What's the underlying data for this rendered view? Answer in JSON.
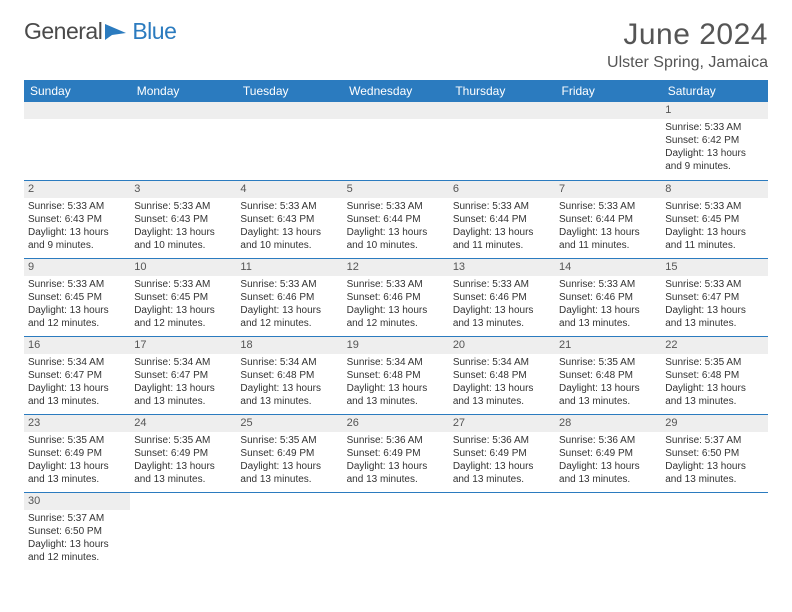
{
  "logo": {
    "text1": "General",
    "text2": "Blue"
  },
  "title": "June 2024",
  "location": "Ulster Spring, Jamaica",
  "colors": {
    "header_bg": "#2b7bbf",
    "header_text": "#ffffff",
    "daynum_bg": "#eeeeee",
    "border": "#2b7bbf",
    "text": "#333333",
    "title_color": "#555555"
  },
  "weekdays": [
    "Sunday",
    "Monday",
    "Tuesday",
    "Wednesday",
    "Thursday",
    "Friday",
    "Saturday"
  ],
  "days": {
    "1": {
      "sunrise": "5:33 AM",
      "sunset": "6:42 PM",
      "daylight": "13 hours and 9 minutes."
    },
    "2": {
      "sunrise": "5:33 AM",
      "sunset": "6:43 PM",
      "daylight": "13 hours and 9 minutes."
    },
    "3": {
      "sunrise": "5:33 AM",
      "sunset": "6:43 PM",
      "daylight": "13 hours and 10 minutes."
    },
    "4": {
      "sunrise": "5:33 AM",
      "sunset": "6:43 PM",
      "daylight": "13 hours and 10 minutes."
    },
    "5": {
      "sunrise": "5:33 AM",
      "sunset": "6:44 PM",
      "daylight": "13 hours and 10 minutes."
    },
    "6": {
      "sunrise": "5:33 AM",
      "sunset": "6:44 PM",
      "daylight": "13 hours and 11 minutes."
    },
    "7": {
      "sunrise": "5:33 AM",
      "sunset": "6:44 PM",
      "daylight": "13 hours and 11 minutes."
    },
    "8": {
      "sunrise": "5:33 AM",
      "sunset": "6:45 PM",
      "daylight": "13 hours and 11 minutes."
    },
    "9": {
      "sunrise": "5:33 AM",
      "sunset": "6:45 PM",
      "daylight": "13 hours and 12 minutes."
    },
    "10": {
      "sunrise": "5:33 AM",
      "sunset": "6:45 PM",
      "daylight": "13 hours and 12 minutes."
    },
    "11": {
      "sunrise": "5:33 AM",
      "sunset": "6:46 PM",
      "daylight": "13 hours and 12 minutes."
    },
    "12": {
      "sunrise": "5:33 AM",
      "sunset": "6:46 PM",
      "daylight": "13 hours and 12 minutes."
    },
    "13": {
      "sunrise": "5:33 AM",
      "sunset": "6:46 PM",
      "daylight": "13 hours and 13 minutes."
    },
    "14": {
      "sunrise": "5:33 AM",
      "sunset": "6:46 PM",
      "daylight": "13 hours and 13 minutes."
    },
    "15": {
      "sunrise": "5:33 AM",
      "sunset": "6:47 PM",
      "daylight": "13 hours and 13 minutes."
    },
    "16": {
      "sunrise": "5:34 AM",
      "sunset": "6:47 PM",
      "daylight": "13 hours and 13 minutes."
    },
    "17": {
      "sunrise": "5:34 AM",
      "sunset": "6:47 PM",
      "daylight": "13 hours and 13 minutes."
    },
    "18": {
      "sunrise": "5:34 AM",
      "sunset": "6:48 PM",
      "daylight": "13 hours and 13 minutes."
    },
    "19": {
      "sunrise": "5:34 AM",
      "sunset": "6:48 PM",
      "daylight": "13 hours and 13 minutes."
    },
    "20": {
      "sunrise": "5:34 AM",
      "sunset": "6:48 PM",
      "daylight": "13 hours and 13 minutes."
    },
    "21": {
      "sunrise": "5:35 AM",
      "sunset": "6:48 PM",
      "daylight": "13 hours and 13 minutes."
    },
    "22": {
      "sunrise": "5:35 AM",
      "sunset": "6:48 PM",
      "daylight": "13 hours and 13 minutes."
    },
    "23": {
      "sunrise": "5:35 AM",
      "sunset": "6:49 PM",
      "daylight": "13 hours and 13 minutes."
    },
    "24": {
      "sunrise": "5:35 AM",
      "sunset": "6:49 PM",
      "daylight": "13 hours and 13 minutes."
    },
    "25": {
      "sunrise": "5:35 AM",
      "sunset": "6:49 PM",
      "daylight": "13 hours and 13 minutes."
    },
    "26": {
      "sunrise": "5:36 AM",
      "sunset": "6:49 PM",
      "daylight": "13 hours and 13 minutes."
    },
    "27": {
      "sunrise": "5:36 AM",
      "sunset": "6:49 PM",
      "daylight": "13 hours and 13 minutes."
    },
    "28": {
      "sunrise": "5:36 AM",
      "sunset": "6:49 PM",
      "daylight": "13 hours and 13 minutes."
    },
    "29": {
      "sunrise": "5:37 AM",
      "sunset": "6:50 PM",
      "daylight": "13 hours and 13 minutes."
    },
    "30": {
      "sunrise": "5:37 AM",
      "sunset": "6:50 PM",
      "daylight": "13 hours and 12 minutes."
    }
  },
  "layout": {
    "first_day_of_week_index": 6,
    "days_in_month": 30,
    "rows": 6
  },
  "labels": {
    "sunrise_prefix": "Sunrise: ",
    "sunset_prefix": "Sunset: ",
    "daylight_prefix": "Daylight: "
  }
}
